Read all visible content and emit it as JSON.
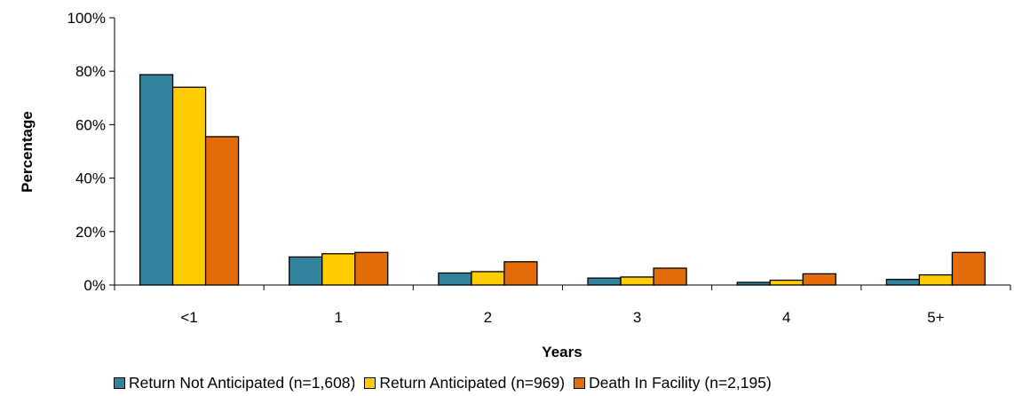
{
  "chart_data": {
    "type": "bar",
    "title": "",
    "xlabel": "Years",
    "ylabel": "Percentage",
    "categories": [
      "<1",
      "1",
      "2",
      "3",
      "4",
      "5+"
    ],
    "ylim": [
      0,
      100
    ],
    "yticks": [
      "0%",
      "20%",
      "40%",
      "60%",
      "80%",
      "100%"
    ],
    "yunit": "%",
    "grid": false,
    "legend_position": "bottom",
    "series": [
      {
        "name": "Return Not Anticipated (n=1,608)",
        "color": "#31849B",
        "values": [
          78.7,
          10.5,
          4.5,
          2.6,
          1.0,
          2.1
        ]
      },
      {
        "name": "Return Anticipated (n=969)",
        "color": "#FFCC00",
        "values": [
          74.0,
          11.7,
          5.0,
          3.0,
          1.8,
          3.8
        ]
      },
      {
        "name": "Death In Facility (n=2,195)",
        "color": "#E36C09",
        "values": [
          55.5,
          12.2,
          8.7,
          6.3,
          4.2,
          12.2
        ]
      }
    ]
  }
}
